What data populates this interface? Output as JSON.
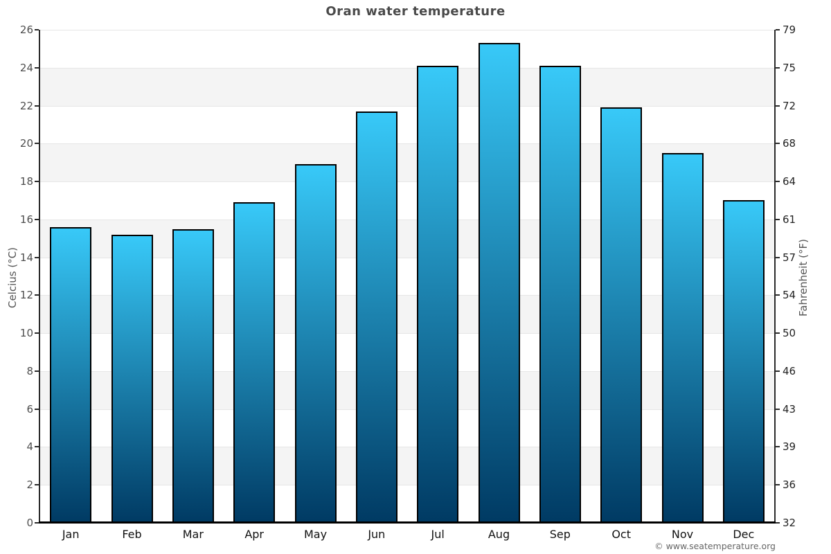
{
  "watermark": "© www.seatemperature.org",
  "chart_data": {
    "type": "bar",
    "title": "Oran water temperature",
    "categories": [
      "Jan",
      "Feb",
      "Mar",
      "Apr",
      "May",
      "Jun",
      "Jul",
      "Aug",
      "Sep",
      "Oct",
      "Nov",
      "Dec"
    ],
    "series": [
      {
        "name": "Water temperature (°C)",
        "values": [
          15.6,
          15.2,
          15.5,
          16.9,
          18.9,
          21.7,
          24.1,
          25.3,
          24.1,
          21.9,
          19.5,
          17.0
        ]
      }
    ],
    "ylabel_left": "Celcius (°C)",
    "ylabel_right": "Fahrenheit (°F)",
    "ylim": [
      0,
      26
    ],
    "yticks_celsius": [
      26,
      24,
      22,
      20,
      18,
      16,
      14,
      12,
      10,
      8,
      6,
      4,
      2,
      0
    ],
    "yticks_fahrenheit": [
      79,
      75,
      72,
      68,
      64,
      61,
      57,
      54,
      50,
      46,
      43,
      39,
      36,
      32
    ],
    "grid": "alternating horizontal bands, gridline every 2 °C",
    "legend": "none",
    "colors": {
      "bar_gradient_top": "#38c9f8",
      "bar_gradient_bottom": "#003a63",
      "bar_border": "#000000",
      "band_gray": "#f4f4f4",
      "band_white": "#ffffff",
      "gridline": "#e6e6e6",
      "axis": "#2a2a2a",
      "x_axis": "#000000",
      "title": "#4a4a4a",
      "tick_label": "#4d4d4d",
      "month_label": "#111111",
      "watermark": "#666666"
    }
  }
}
